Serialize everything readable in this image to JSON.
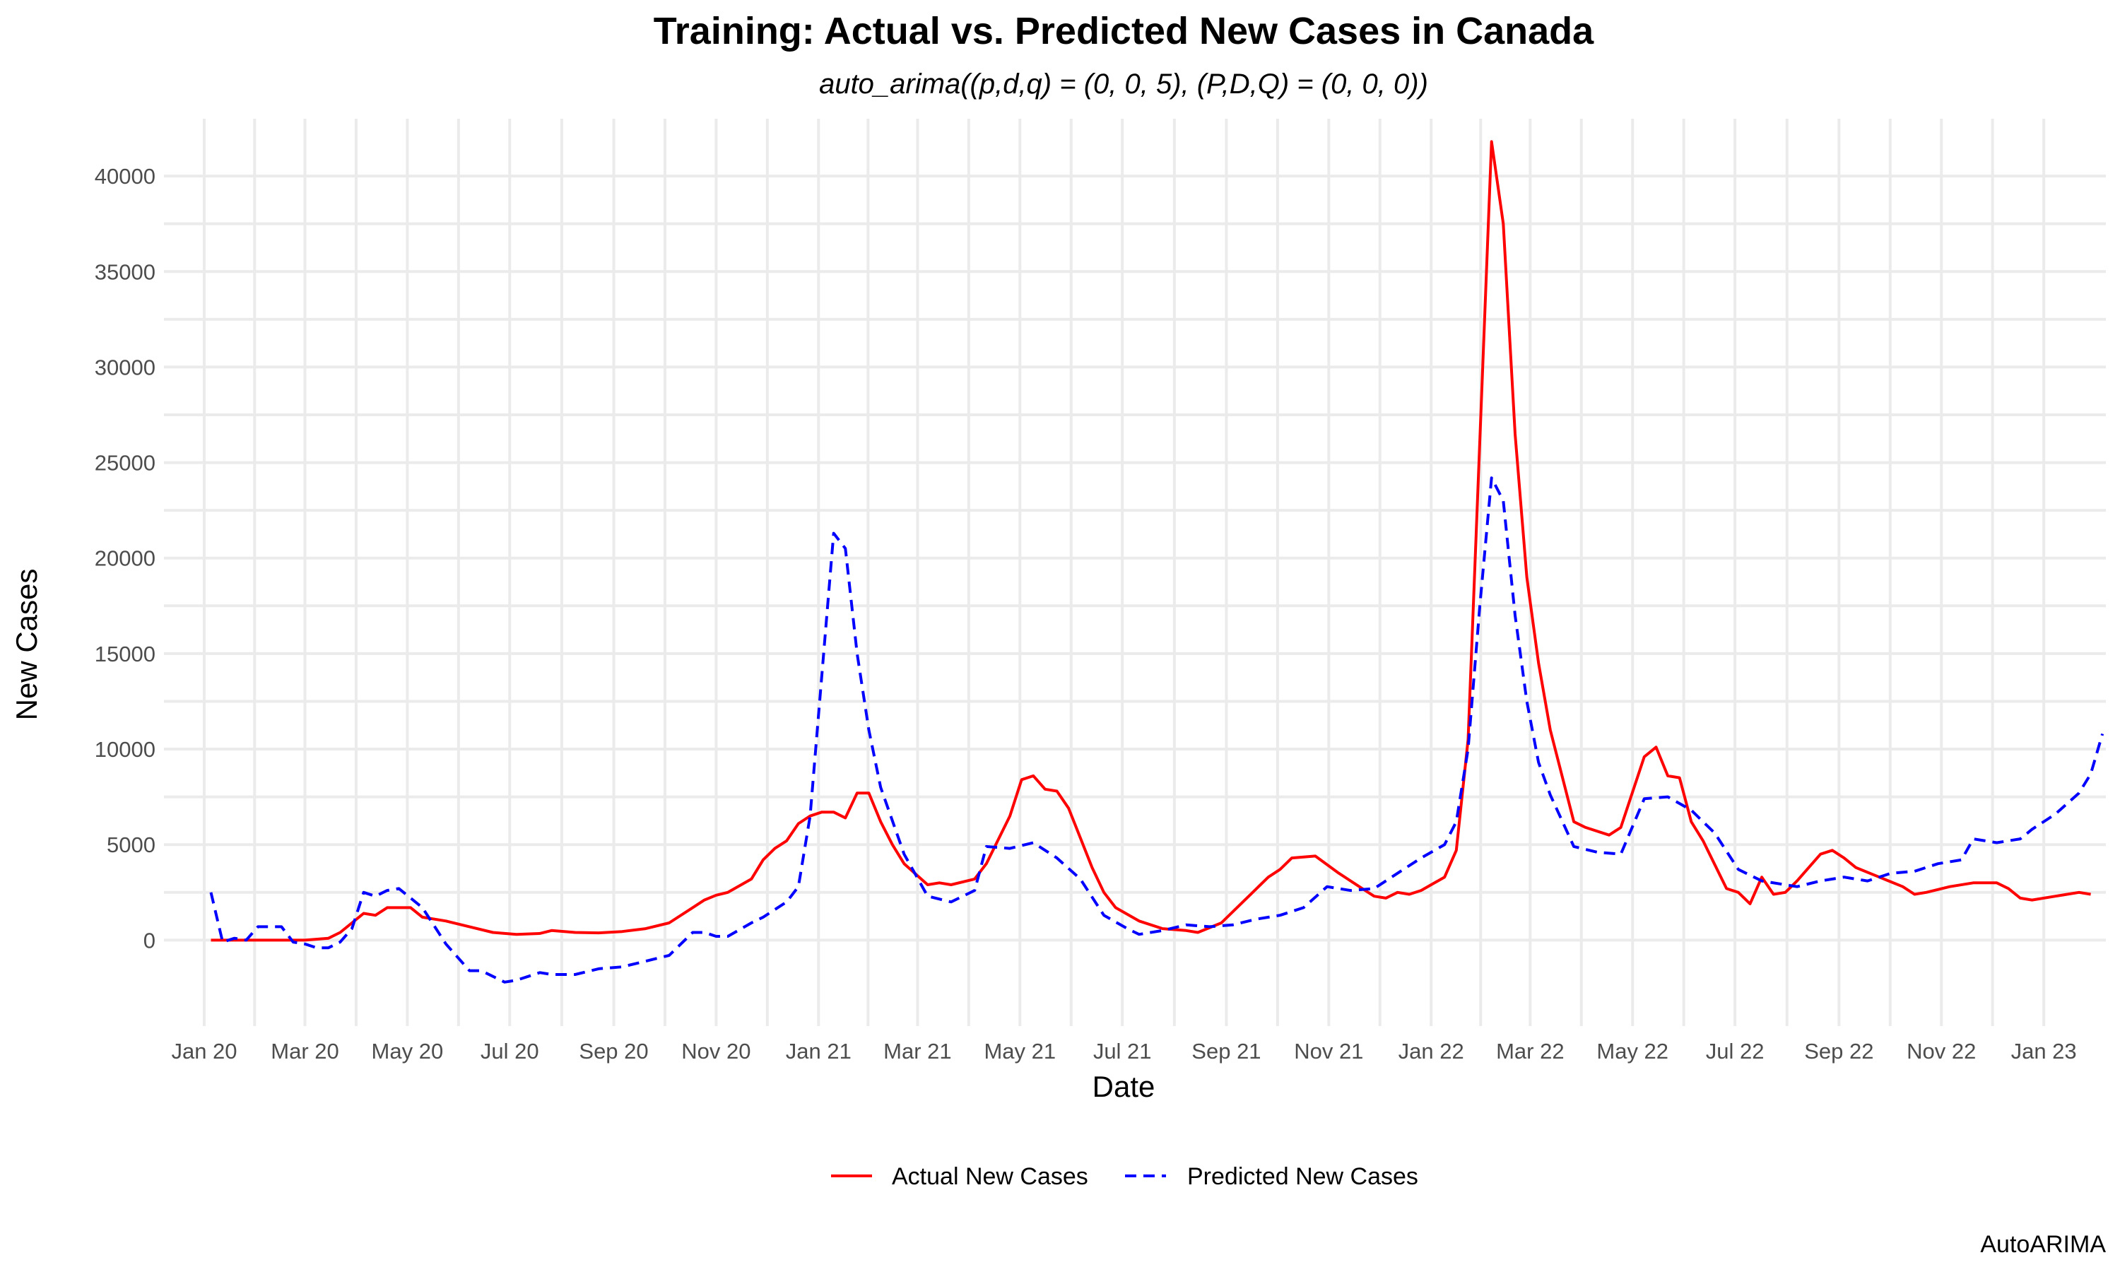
{
  "chart_data": {
    "type": "line",
    "title": "Training: Actual vs. Predicted New Cases in Canada",
    "subtitle": "auto_arima((p,d,q) = (0, 0, 5), (P,D,Q) = (0, 0, 0))",
    "xlabel": "Date",
    "ylabel": "New Cases",
    "caption": "AutoARIMA",
    "xlim": [
      "2019-12-08",
      "2023-02-07"
    ],
    "ylim": [
      -4500,
      43000
    ],
    "grid": true,
    "legend_position": "bottom",
    "x_ticks": [
      {
        "date": "2020-01-01",
        "label": "Jan 20"
      },
      {
        "date": "2020-03-01",
        "label": "Mar 20"
      },
      {
        "date": "2020-05-01",
        "label": "May 20"
      },
      {
        "date": "2020-07-01",
        "label": "Jul 20"
      },
      {
        "date": "2020-09-01",
        "label": "Sep 20"
      },
      {
        "date": "2020-11-01",
        "label": "Nov 20"
      },
      {
        "date": "2021-01-01",
        "label": "Jan 21"
      },
      {
        "date": "2021-03-01",
        "label": "Mar 21"
      },
      {
        "date": "2021-05-01",
        "label": "May 21"
      },
      {
        "date": "2021-07-01",
        "label": "Jul 21"
      },
      {
        "date": "2021-09-01",
        "label": "Sep 21"
      },
      {
        "date": "2021-11-01",
        "label": "Nov 21"
      },
      {
        "date": "2022-01-01",
        "label": "Jan 22"
      },
      {
        "date": "2022-03-01",
        "label": "Mar 22"
      },
      {
        "date": "2022-05-01",
        "label": "May 22"
      },
      {
        "date": "2022-07-01",
        "label": "Jul 22"
      },
      {
        "date": "2022-09-01",
        "label": "Sep 22"
      },
      {
        "date": "2022-11-01",
        "label": "Nov 22"
      },
      {
        "date": "2023-01-01",
        "label": "Jan 23"
      }
    ],
    "y_ticks": [
      {
        "value": 0,
        "label": "0"
      },
      {
        "value": 5000,
        "label": "5000"
      },
      {
        "value": 10000,
        "label": "10000"
      },
      {
        "value": 15000,
        "label": "15000"
      },
      {
        "value": 20000,
        "label": "20000"
      },
      {
        "value": 25000,
        "label": "25000"
      },
      {
        "value": 30000,
        "label": "30000"
      },
      {
        "value": 35000,
        "label": "35000"
      },
      {
        "value": 40000,
        "label": "40000"
      }
    ],
    "series": [
      {
        "name": "Actual New Cases",
        "color": "#ff0000",
        "dash": "solid",
        "points": [
          [
            "2020-01-05",
            0
          ],
          [
            "2020-01-19",
            0
          ],
          [
            "2020-02-02",
            0
          ],
          [
            "2020-02-16",
            0
          ],
          [
            "2020-03-01",
            0
          ],
          [
            "2020-03-15",
            100
          ],
          [
            "2020-03-22",
            400
          ],
          [
            "2020-04-05",
            1400
          ],
          [
            "2020-04-12",
            1300
          ],
          [
            "2020-04-19",
            1700
          ],
          [
            "2020-05-03",
            1700
          ],
          [
            "2020-05-10",
            1200
          ],
          [
            "2020-05-24",
            1000
          ],
          [
            "2020-06-07",
            700
          ],
          [
            "2020-06-21",
            400
          ],
          [
            "2020-07-05",
            300
          ],
          [
            "2020-07-19",
            350
          ],
          [
            "2020-07-26",
            500
          ],
          [
            "2020-08-09",
            400
          ],
          [
            "2020-08-23",
            380
          ],
          [
            "2020-09-06",
            450
          ],
          [
            "2020-09-20",
            600
          ],
          [
            "2020-10-04",
            900
          ],
          [
            "2020-10-18",
            1700
          ],
          [
            "2020-10-25",
            2100
          ],
          [
            "2020-11-01",
            2350
          ],
          [
            "2020-11-08",
            2500
          ],
          [
            "2020-11-22",
            3200
          ],
          [
            "2020-11-29",
            4200
          ],
          [
            "2020-12-06",
            4800
          ],
          [
            "2020-12-13",
            5200
          ],
          [
            "2020-12-20",
            6100
          ],
          [
            "2020-12-27",
            6500
          ],
          [
            "2021-01-03",
            6700
          ],
          [
            "2021-01-10",
            6700
          ],
          [
            "2021-01-17",
            6400
          ],
          [
            "2021-01-24",
            7700
          ],
          [
            "2021-01-31",
            7700
          ],
          [
            "2021-02-07",
            6200
          ],
          [
            "2021-02-14",
            5000
          ],
          [
            "2021-02-21",
            4000
          ],
          [
            "2021-03-07",
            2900
          ],
          [
            "2021-03-14",
            3000
          ],
          [
            "2021-03-21",
            2900
          ],
          [
            "2021-04-04",
            3200
          ],
          [
            "2021-04-11",
            4000
          ],
          [
            "2021-04-25",
            6500
          ],
          [
            "2021-05-02",
            8400
          ],
          [
            "2021-05-09",
            8600
          ],
          [
            "2021-05-16",
            7900
          ],
          [
            "2021-05-23",
            7800
          ],
          [
            "2021-05-30",
            6900
          ],
          [
            "2021-06-13",
            3800
          ],
          [
            "2021-06-20",
            2500
          ],
          [
            "2021-06-27",
            1700
          ],
          [
            "2021-07-11",
            1000
          ],
          [
            "2021-07-25",
            600
          ],
          [
            "2021-08-08",
            500
          ],
          [
            "2021-08-15",
            400
          ],
          [
            "2021-08-29",
            900
          ],
          [
            "2021-09-12",
            2100
          ],
          [
            "2021-09-26",
            3300
          ],
          [
            "2021-10-03",
            3700
          ],
          [
            "2021-10-10",
            4300
          ],
          [
            "2021-10-24",
            4400
          ],
          [
            "2021-11-07",
            3500
          ],
          [
            "2021-11-21",
            2700
          ],
          [
            "2021-11-28",
            2300
          ],
          [
            "2021-12-05",
            2200
          ],
          [
            "2021-12-12",
            2500
          ],
          [
            "2021-12-19",
            2400
          ],
          [
            "2021-12-26",
            2600
          ],
          [
            "2022-01-09",
            3300
          ],
          [
            "2022-01-16",
            4700
          ],
          [
            "2022-01-23",
            10500
          ],
          [
            "2022-02-06",
            41800
          ],
          [
            "2022-02-13",
            37500
          ],
          [
            "2022-02-20",
            26500
          ],
          [
            "2022-02-27",
            19000
          ],
          [
            "2022-03-06",
            14500
          ],
          [
            "2022-03-13",
            11000
          ],
          [
            "2022-03-27",
            6200
          ],
          [
            "2022-04-03",
            5900
          ],
          [
            "2022-04-17",
            5500
          ],
          [
            "2022-04-24",
            5900
          ],
          [
            "2022-05-08",
            9600
          ],
          [
            "2022-05-15",
            10100
          ],
          [
            "2022-05-22",
            8600
          ],
          [
            "2022-05-29",
            8500
          ],
          [
            "2022-06-05",
            6200
          ],
          [
            "2022-06-12",
            5200
          ],
          [
            "2022-06-26",
            2700
          ],
          [
            "2022-07-03",
            2500
          ],
          [
            "2022-07-10",
            1900
          ],
          [
            "2022-07-17",
            3300
          ],
          [
            "2022-07-24",
            2400
          ],
          [
            "2022-07-31",
            2500
          ],
          [
            "2022-08-07",
            3100
          ],
          [
            "2022-08-21",
            4500
          ],
          [
            "2022-08-28",
            4700
          ],
          [
            "2022-09-04",
            4300
          ],
          [
            "2022-09-11",
            3800
          ],
          [
            "2022-09-25",
            3300
          ],
          [
            "2022-10-09",
            2800
          ],
          [
            "2022-10-16",
            2400
          ],
          [
            "2022-10-23",
            2500
          ],
          [
            "2022-11-06",
            2800
          ],
          [
            "2022-11-20",
            3000
          ],
          [
            "2022-12-04",
            3000
          ],
          [
            "2022-12-11",
            2700
          ],
          [
            "2022-12-18",
            2200
          ],
          [
            "2022-12-25",
            2100
          ],
          [
            "2023-01-08",
            2300
          ],
          [
            "2023-01-22",
            2500
          ],
          [
            "2023-01-29",
            2400
          ]
        ]
      },
      {
        "name": "Predicted New Cases",
        "color": "#0000ff",
        "dash": "dashed",
        "points": [
          [
            "2020-01-05",
            2500
          ],
          [
            "2020-01-12",
            -100
          ],
          [
            "2020-01-19",
            100
          ],
          [
            "2020-01-26",
            0
          ],
          [
            "2020-02-02",
            700
          ],
          [
            "2020-02-16",
            700
          ],
          [
            "2020-02-23",
            -100
          ],
          [
            "2020-03-01",
            -200
          ],
          [
            "2020-03-08",
            -400
          ],
          [
            "2020-03-15",
            -400
          ],
          [
            "2020-03-22",
            -100
          ],
          [
            "2020-03-29",
            600
          ],
          [
            "2020-04-05",
            2500
          ],
          [
            "2020-04-12",
            2300
          ],
          [
            "2020-04-19",
            2600
          ],
          [
            "2020-04-26",
            2700
          ],
          [
            "2020-05-10",
            1700
          ],
          [
            "2020-05-24",
            -200
          ],
          [
            "2020-06-07",
            -1600
          ],
          [
            "2020-06-14",
            -1600
          ],
          [
            "2020-06-28",
            -2200
          ],
          [
            "2020-07-05",
            -2100
          ],
          [
            "2020-07-19",
            -1700
          ],
          [
            "2020-07-26",
            -1800
          ],
          [
            "2020-08-09",
            -1800
          ],
          [
            "2020-08-23",
            -1500
          ],
          [
            "2020-09-06",
            -1400
          ],
          [
            "2020-09-20",
            -1100
          ],
          [
            "2020-10-04",
            -800
          ],
          [
            "2020-10-18",
            400
          ],
          [
            "2020-10-25",
            400
          ],
          [
            "2020-11-01",
            200
          ],
          [
            "2020-11-08",
            200
          ],
          [
            "2020-11-22",
            900
          ],
          [
            "2020-11-29",
            1200
          ],
          [
            "2020-12-06",
            1600
          ],
          [
            "2020-12-13",
            2000
          ],
          [
            "2020-12-20",
            2800
          ],
          [
            "2020-12-27",
            6500
          ],
          [
            "2021-01-10",
            21300
          ],
          [
            "2021-01-17",
            20500
          ],
          [
            "2021-01-24",
            15000
          ],
          [
            "2021-01-31",
            11000
          ],
          [
            "2021-02-07",
            8000
          ],
          [
            "2021-02-21",
            4500
          ],
          [
            "2021-03-07",
            2300
          ],
          [
            "2021-03-21",
            2000
          ],
          [
            "2021-04-04",
            2600
          ],
          [
            "2021-04-11",
            4900
          ],
          [
            "2021-04-25",
            4800
          ],
          [
            "2021-05-09",
            5100
          ],
          [
            "2021-05-23",
            4300
          ],
          [
            "2021-06-06",
            3200
          ],
          [
            "2021-06-20",
            1300
          ],
          [
            "2021-07-04",
            600
          ],
          [
            "2021-07-11",
            300
          ],
          [
            "2021-07-25",
            500
          ],
          [
            "2021-08-08",
            800
          ],
          [
            "2021-08-22",
            700
          ],
          [
            "2021-09-05",
            800
          ],
          [
            "2021-09-19",
            1100
          ],
          [
            "2021-10-03",
            1300
          ],
          [
            "2021-10-17",
            1700
          ],
          [
            "2021-10-31",
            2800
          ],
          [
            "2021-11-14",
            2600
          ],
          [
            "2021-11-28",
            2700
          ],
          [
            "2021-12-12",
            3500
          ],
          [
            "2021-12-26",
            4300
          ],
          [
            "2022-01-09",
            5000
          ],
          [
            "2022-01-16",
            6200
          ],
          [
            "2022-01-23",
            10000
          ],
          [
            "2022-01-30",
            17500
          ],
          [
            "2022-02-06",
            24200
          ],
          [
            "2022-02-13",
            23000
          ],
          [
            "2022-02-20",
            17000
          ],
          [
            "2022-02-27",
            12500
          ],
          [
            "2022-03-06",
            9300
          ],
          [
            "2022-03-13",
            7600
          ],
          [
            "2022-03-27",
            4900
          ],
          [
            "2022-04-10",
            4600
          ],
          [
            "2022-04-24",
            4500
          ],
          [
            "2022-05-08",
            7400
          ],
          [
            "2022-05-22",
            7500
          ],
          [
            "2022-06-05",
            6800
          ],
          [
            "2022-06-19",
            5600
          ],
          [
            "2022-07-03",
            3700
          ],
          [
            "2022-07-17",
            3100
          ],
          [
            "2022-08-07",
            2800
          ],
          [
            "2022-08-21",
            3100
          ],
          [
            "2022-09-04",
            3300
          ],
          [
            "2022-09-18",
            3100
          ],
          [
            "2022-10-02",
            3500
          ],
          [
            "2022-10-16",
            3600
          ],
          [
            "2022-10-30",
            4000
          ],
          [
            "2022-11-13",
            4200
          ],
          [
            "2022-11-20",
            5300
          ],
          [
            "2022-12-04",
            5100
          ],
          [
            "2022-12-18",
            5300
          ],
          [
            "2022-12-25",
            5800
          ],
          [
            "2023-01-08",
            6600
          ],
          [
            "2023-01-22",
            7700
          ],
          [
            "2023-01-29",
            8700
          ],
          [
            "2023-02-05",
            10800
          ]
        ]
      }
    ]
  }
}
